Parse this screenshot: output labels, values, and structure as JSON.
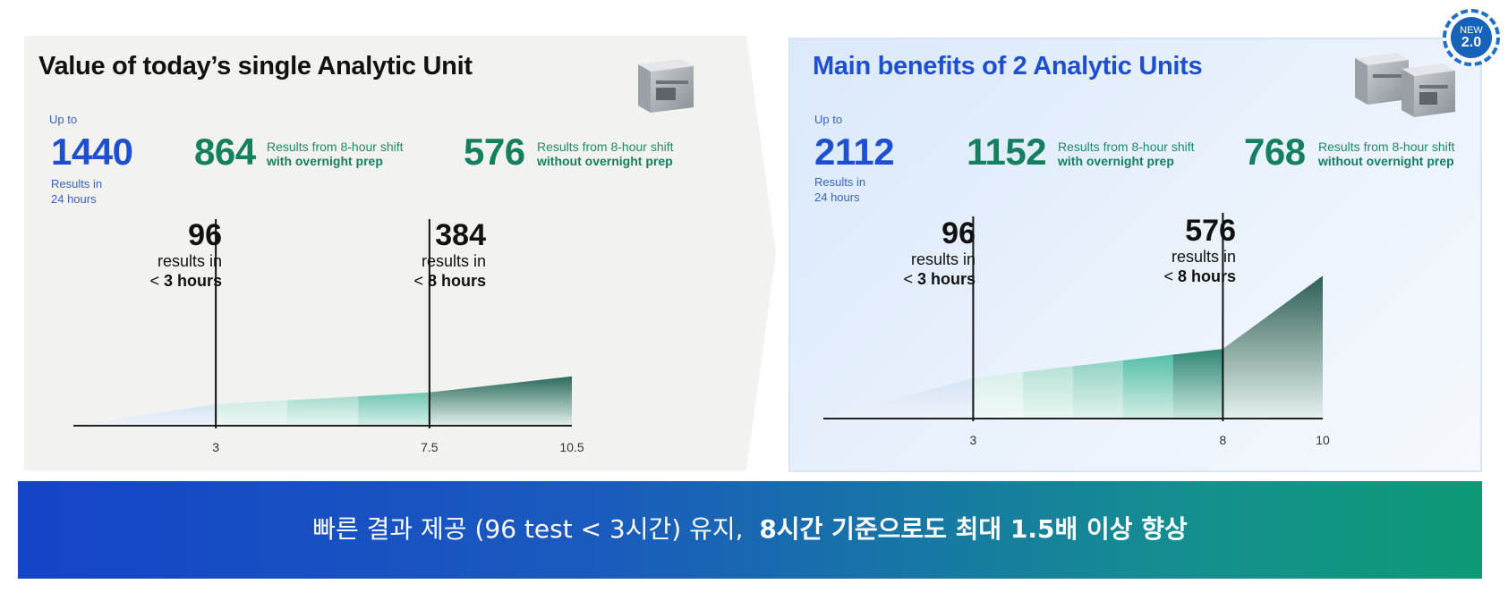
{
  "left_panel": {
    "title": "Value of today’s single Analytic Unit",
    "up_to": "Up to",
    "stat_main": {
      "value": "1440",
      "caption_l1": "Results in",
      "caption_l2": "24 hours"
    },
    "stat_with": {
      "value": "864",
      "desc": "Results from 8-hour shift",
      "desc_bold": "with overnight prep"
    },
    "stat_without": {
      "value": "576",
      "desc": "Results from 8-hour shift",
      "desc_bold": "without overnight prep"
    },
    "ann1": {
      "num": "96",
      "l1": "results in",
      "lt": "<",
      "hours": "3 hours"
    },
    "ann2": {
      "num": "384",
      "l1": "results in",
      "lt": "<",
      "hours": "8 hours"
    }
  },
  "right_panel": {
    "title": "Main benefits of 2 Analytic Units",
    "up_to": "Up to",
    "stat_main": {
      "value": "2112",
      "caption_l1": "Results in",
      "caption_l2": "24 hours"
    },
    "stat_with": {
      "value": "1152",
      "desc": "Results from 8-hour shift",
      "desc_bold": "with overnight prep"
    },
    "stat_without": {
      "value": "768",
      "desc": "Results from 8-hour shift",
      "desc_bold": "without overnight prep"
    },
    "ann1": {
      "num": "96",
      "l1": "results in",
      "lt": "<",
      "hours": "3 hours"
    },
    "ann2": {
      "num": "576",
      "l1": "results in",
      "lt": "<",
      "hours": "8 hours"
    }
  },
  "badge": {
    "line1": "NEW",
    "line2": "2.0"
  },
  "banner": {
    "text_regular": "빠른 결과 제공 (96 test < 3시간) 유지,",
    "text_bold": "8시간 기준으로도 최대 1.5배 이상 향상"
  },
  "colors": {
    "blue": "#1d4fd0",
    "green": "#15805f",
    "banner_start": "#1444c8",
    "banner_end": "#0e9a76"
  },
  "chart_data": [
    {
      "type": "area",
      "xlim": [
        0,
        10.5
      ],
      "ticks": [
        "3",
        "7.5",
        "10.5"
      ],
      "tick_values": [
        3,
        7.5,
        10.5
      ],
      "markers": [
        3,
        7.5
      ],
      "points": [
        [
          0,
          0
        ],
        [
          3,
          2.0
        ],
        [
          7.5,
          3.1
        ],
        [
          10.5,
          4.6
        ]
      ]
    },
    {
      "type": "area",
      "xlim": [
        0,
        10
      ],
      "ticks": [
        "3",
        "8",
        "10"
      ],
      "tick_values": [
        3,
        8,
        10
      ],
      "markers": [
        3,
        8
      ],
      "points": [
        [
          0,
          0
        ],
        [
          3,
          2.4
        ],
        [
          8,
          4.1
        ],
        [
          10,
          8.4
        ]
      ]
    }
  ]
}
